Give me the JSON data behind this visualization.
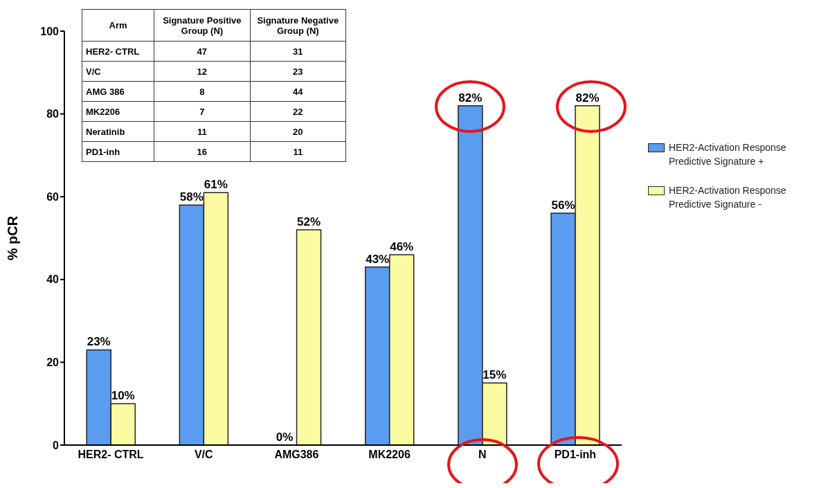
{
  "chart_data": {
    "type": "bar",
    "ylabel": "% pCR",
    "categories": [
      "HER2- CTRL",
      "V/C",
      "AMG386",
      "MK2206",
      "N",
      "PD1-inh"
    ],
    "series": [
      {
        "name": "HER2-Activation Response Predictive Signature +",
        "color": "#5a9cf0",
        "values": [
          23,
          58,
          0,
          43,
          82,
          56
        ],
        "value_labels": [
          "23%",
          "58%",
          "0%",
          "43%",
          "82%",
          "56%"
        ]
      },
      {
        "name": "HER2-Activation Response Predictive Signature -",
        "color": "#fafaa0",
        "values": [
          10,
          61,
          52,
          46,
          15,
          82
        ],
        "value_labels": [
          "10%",
          "61%",
          "52%",
          "46%",
          "15%",
          "82%"
        ]
      }
    ],
    "ylim": [
      0,
      100
    ],
    "yticks": [
      0,
      20,
      40,
      60,
      80,
      100
    ],
    "grid": false,
    "legend": "right",
    "annotations": [
      "Arm",
      "Signature Positive Group (N)",
      "Signature Negative Group (N)",
      "HER2- CTRL",
      "47",
      "31",
      "V/C",
      "12",
      "23",
      "AMG 386",
      "8",
      "44",
      "MK2206",
      "7",
      "22",
      "Neratinib",
      "11",
      "20",
      "PD1-inh",
      "16",
      "11"
    ]
  }
}
